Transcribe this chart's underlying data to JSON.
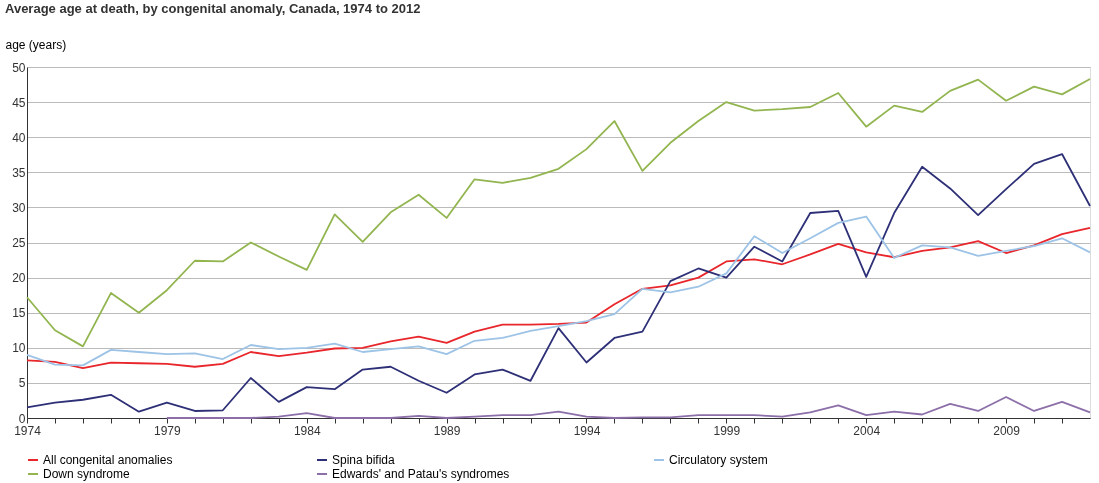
{
  "chart_data": {
    "type": "line",
    "title": "Average age at death, by congenital anomaly, Canada, 1974 to 2012",
    "ylabel": "age (years)",
    "x": [
      1974,
      1975,
      1976,
      1977,
      1978,
      1979,
      1980,
      1981,
      1982,
      1983,
      1984,
      1985,
      1986,
      1987,
      1988,
      1989,
      1990,
      1991,
      1992,
      1993,
      1994,
      1995,
      1996,
      1997,
      1998,
      1999,
      2000,
      2001,
      2002,
      2003,
      2004,
      2005,
      2006,
      2007,
      2008,
      2009,
      2010,
      2011,
      2012
    ],
    "series": [
      {
        "name": "All congenital anomalies",
        "color": "#e8262b",
        "values": [
          8.2,
          8.0,
          7.1,
          7.9,
          7.8,
          7.7,
          7.3,
          7.7,
          9.4,
          8.8,
          9.3,
          9.9,
          10.0,
          10.9,
          11.6,
          10.7,
          12.3,
          13.3,
          13.3,
          13.4,
          13.6,
          16.2,
          18.4,
          18.9,
          20.0,
          22.3,
          22.6,
          21.9,
          23.3,
          24.8,
          23.6,
          22.9,
          23.8,
          24.3,
          25.2,
          23.5,
          24.6,
          26.2,
          27.1
        ]
      },
      {
        "name": "Spina bifida",
        "color": "#2e3077",
        "values": [
          1.5,
          2.2,
          2.6,
          3.3,
          0.9,
          2.2,
          1.0,
          1.1,
          5.7,
          2.3,
          4.4,
          4.1,
          6.9,
          7.3,
          5.3,
          3.6,
          6.2,
          6.9,
          5.3,
          12.8,
          7.9,
          11.4,
          12.3,
          19.5,
          21.3,
          20.0,
          24.4,
          22.3,
          29.2,
          29.5,
          20.1,
          29.2,
          35.8,
          32.7,
          28.9,
          32.6,
          36.2,
          37.6,
          30.2
        ]
      },
      {
        "name": "Circulatory system",
        "color": "#9dc3e6",
        "values": [
          9.0,
          7.6,
          7.5,
          9.7,
          9.4,
          9.1,
          9.2,
          8.4,
          10.4,
          9.8,
          10.0,
          10.6,
          9.4,
          9.8,
          10.2,
          9.1,
          11.0,
          11.4,
          12.4,
          13.1,
          13.8,
          14.8,
          18.4,
          17.9,
          18.7,
          20.6,
          25.9,
          23.5,
          25.6,
          27.8,
          28.7,
          22.8,
          24.6,
          24.3,
          23.1,
          23.8,
          24.5,
          25.6,
          23.6
        ]
      },
      {
        "name": "Down syndrome",
        "color": "#92b550",
        "values": [
          17.2,
          12.5,
          10.2,
          17.8,
          15.0,
          18.2,
          22.4,
          22.3,
          25.0,
          23.0,
          21.1,
          29.0,
          25.1,
          29.3,
          31.8,
          28.5,
          34.0,
          33.5,
          34.2,
          35.5,
          38.3,
          42.3,
          35.2,
          39.2,
          42.3,
          45.0,
          43.8,
          44.0,
          44.3,
          46.3,
          41.5,
          44.5,
          43.6,
          46.6,
          48.2,
          45.2,
          47.2,
          46.1,
          48.3
        ]
      },
      {
        "name": "Edwards' and Patau's syndromes",
        "color": "#8c6fa8",
        "x": [
          1979,
          1980,
          1981,
          1982,
          1983,
          1984,
          1985,
          1986,
          1987,
          1988,
          1989,
          1990,
          1991,
          1992,
          1993,
          1994,
          1995,
          1996,
          1997,
          1998,
          1999,
          2000,
          2001,
          2002,
          2003,
          2004,
          2005,
          2006,
          2007,
          2008,
          2009,
          2010,
          2011,
          2012
        ],
        "values": [
          0,
          0,
          0,
          0,
          0.2,
          0.7,
          0,
          0,
          0,
          0.3,
          0,
          0.2,
          0.4,
          0.4,
          0.9,
          0.2,
          0,
          0.1,
          0.1,
          0.4,
          0.4,
          0.4,
          0.2,
          0.8,
          1.8,
          0.4,
          0.9,
          0.5,
          2.0,
          1.0,
          3.0,
          1.0,
          2.3,
          0.8
        ]
      }
    ],
    "xlim": [
      1974,
      2012
    ],
    "xticks": [
      1974,
      {
        "value": 1975,
        "label": null
      },
      {
        "value": 1976,
        "label": null
      },
      {
        "value": 1977,
        "label": null
      },
      {
        "value": 1978,
        "label": null
      },
      1979,
      {
        "value": 1980,
        "label": null
      },
      {
        "value": 1981,
        "label": null
      },
      {
        "value": 1982,
        "label": null
      },
      {
        "value": 1983,
        "label": null
      },
      1984,
      {
        "value": 1985,
        "label": null
      },
      {
        "value": 1986,
        "label": null
      },
      {
        "value": 1987,
        "label": null
      },
      {
        "value": 1988,
        "label": null
      },
      1989,
      {
        "value": 1990,
        "label": null
      },
      {
        "value": 1991,
        "label": null
      },
      {
        "value": 1992,
        "label": null
      },
      {
        "value": 1993,
        "label": null
      },
      1994,
      {
        "value": 1995,
        "label": null
      },
      {
        "value": 1996,
        "label": null
      },
      {
        "value": 1997,
        "label": null
      },
      {
        "value": 1998,
        "label": null
      },
      1999,
      {
        "value": 2000,
        "label": null
      },
      {
        "value": 2001,
        "label": null
      },
      {
        "value": 2002,
        "label": null
      },
      {
        "value": 2003,
        "label": null
      },
      2004,
      {
        "value": 2005,
        "label": null
      },
      {
        "value": 2006,
        "label": null
      },
      {
        "value": 2007,
        "label": null
      },
      {
        "value": 2008,
        "label": null
      },
      2009,
      {
        "value": 2010,
        "label": null
      },
      {
        "value": 2011,
        "label": null
      }
    ],
    "ylim": [
      0,
      50
    ],
    "yticks": [
      0,
      5,
      10,
      15,
      20,
      25,
      30,
      35,
      40,
      45,
      50
    ],
    "grid": "y",
    "legend": "bottom",
    "marker": "none",
    "line_style": "solid"
  }
}
